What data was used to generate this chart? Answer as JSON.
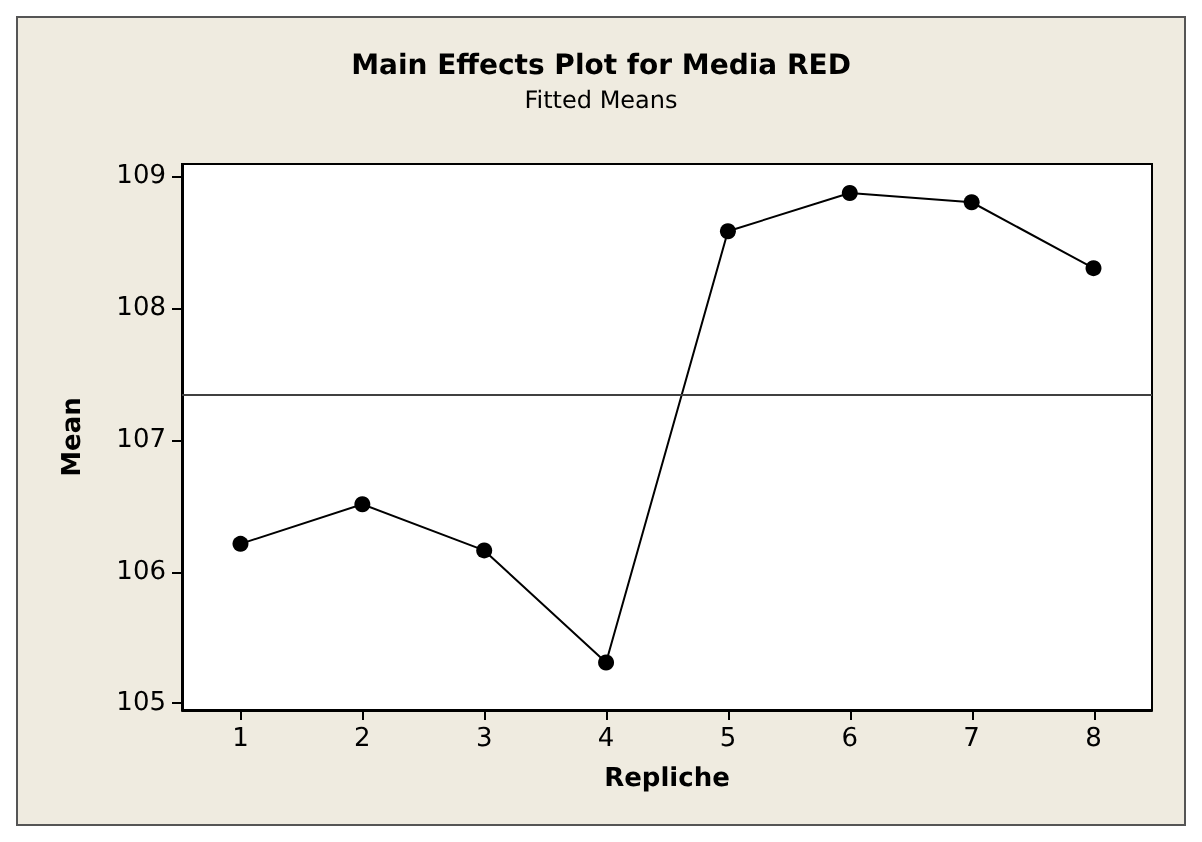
{
  "chart_data": {
    "type": "line",
    "title": "Main Effects Plot for Media RED",
    "subtitle": "Fitted Means",
    "xlabel": "Repliche",
    "ylabel": "Mean",
    "x": [
      1,
      2,
      3,
      4,
      5,
      6,
      7,
      8
    ],
    "series": [
      {
        "color": "#000000",
        "values": [
          106.21,
          106.51,
          106.16,
          105.31,
          108.58,
          108.87,
          108.8,
          108.3
        ]
      }
    ],
    "xlim": [
      0.52,
      8.48
    ],
    "xticks": [
      1,
      2,
      3,
      4,
      5,
      6,
      7,
      8
    ],
    "ylim": [
      104.95,
      109.09
    ],
    "yticks": [
      105,
      106,
      107,
      108,
      109
    ],
    "ref_lines": [
      {
        "axis": "y",
        "value": 107.34,
        "color": "#404040"
      }
    ],
    "marker": "circle",
    "line_style": "solid"
  }
}
